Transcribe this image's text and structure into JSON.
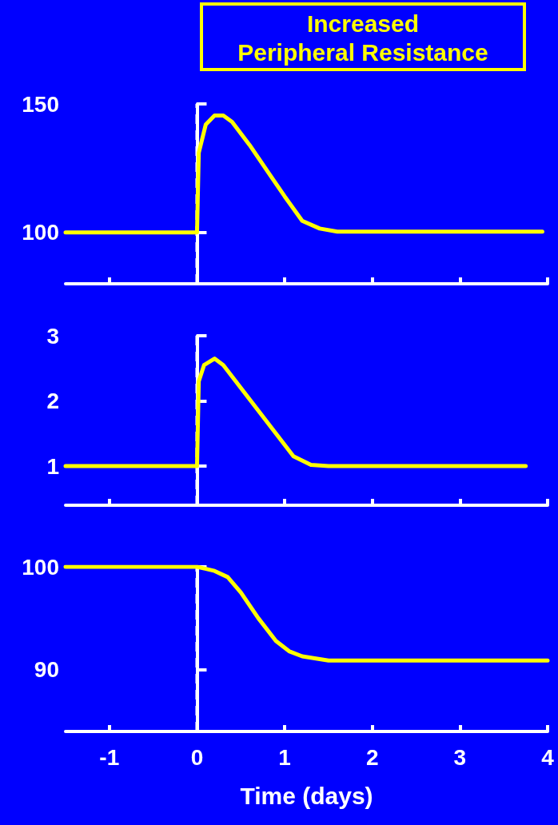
{
  "chart_data": [
    {
      "type": "line",
      "title": "Increased\nPeripheral Resistance",
      "x": [
        -1.5,
        0,
        0.02,
        0.1,
        0.2,
        0.3,
        0.4,
        0.6,
        0.8,
        1.0,
        1.2,
        1.4,
        1.6,
        3.94
      ],
      "series": [
        {
          "color": "#ffff00",
          "values": [
            100,
            100,
            131,
            142,
            145.5,
            145.5,
            143,
            134,
            124,
            114,
            104.5,
            101.5,
            100.3,
            100.3
          ]
        }
      ],
      "xlim": [
        -1.5,
        4
      ],
      "xticks": [
        {
          "value": -1,
          "label": null
        },
        {
          "value": 0,
          "label": null
        },
        {
          "value": 1,
          "label": null
        },
        {
          "value": 2,
          "label": null
        },
        {
          "value": 3,
          "label": null
        },
        {
          "value": 4,
          "label": null
        }
      ],
      "ylim": [
        80,
        150
      ],
      "yticks": [
        100,
        150
      ],
      "tick_labels": "y",
      "ref_lines": [
        {
          "axis": "x",
          "value": 0,
          "color": "#ffffff",
          "line_style": "dashed"
        }
      ],
      "grid": false,
      "marker": "none",
      "line_style": "solid"
    },
    {
      "type": "line",
      "x": [
        -1.5,
        0,
        0.02,
        0.08,
        0.2,
        0.3,
        0.5,
        0.7,
        0.9,
        1.1,
        1.3,
        1.5,
        3.75
      ],
      "series": [
        {
          "color": "#ffff00",
          "values": [
            1,
            1,
            2.3,
            2.55,
            2.65,
            2.55,
            2.2,
            1.85,
            1.5,
            1.15,
            1.02,
            1,
            1
          ]
        }
      ],
      "xlim": [
        -1.5,
        4
      ],
      "xticks": [
        {
          "value": -1,
          "label": null
        },
        {
          "value": 0,
          "label": null
        },
        {
          "value": 1,
          "label": null
        },
        {
          "value": 2,
          "label": null
        },
        {
          "value": 3,
          "label": null
        },
        {
          "value": 4,
          "label": null
        }
      ],
      "ylim": [
        0.4,
        3
      ],
      "yticks": [
        1,
        2,
        3
      ],
      "tick_labels": "y",
      "ref_lines": [
        {
          "axis": "x",
          "value": 0,
          "color": "#ffffff",
          "line_style": "dashed"
        }
      ],
      "grid": false,
      "marker": "none",
      "line_style": "solid"
    },
    {
      "type": "line",
      "xlabel": "Time (days)",
      "x": [
        -1.5,
        0,
        0.2,
        0.35,
        0.5,
        0.7,
        0.9,
        1.05,
        1.2,
        1.5,
        4
      ],
      "series": [
        {
          "color": "#ffff00",
          "values": [
            100,
            100,
            99.6,
            99,
            97.5,
            95,
            92.8,
            91.8,
            91.3,
            90.9,
            90.9
          ]
        }
      ],
      "xlim": [
        -1.5,
        4
      ],
      "xticks": [
        -1,
        0,
        1,
        2,
        3,
        4
      ],
      "ylim": [
        84,
        100
      ],
      "yticks": [
        90,
        100
      ],
      "ref_lines": [
        {
          "axis": "x",
          "value": 0,
          "color": "#ffffff",
          "line_style": "dashed"
        }
      ],
      "grid": false,
      "marker": "none",
      "line_style": "solid"
    }
  ]
}
